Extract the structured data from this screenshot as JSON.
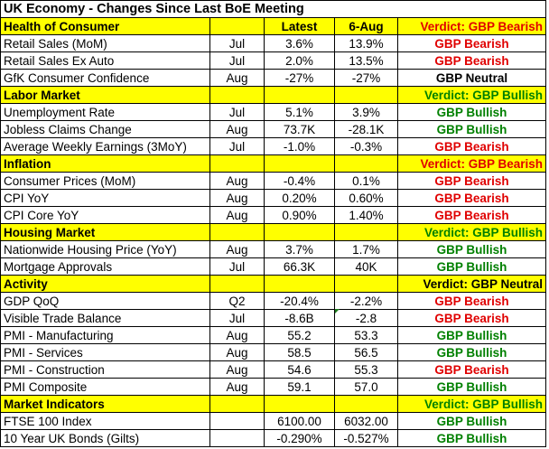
{
  "title": "UK Economy - Changes Since Last BoE Meeting",
  "sections": [
    {
      "name": "Health of Consumer",
      "col_latest": "Latest",
      "col_prior": "6-Aug",
      "verdict": "Verdict: GBP Bearish",
      "verdict_tone": "bear",
      "rows": [
        {
          "indicator": "Retail Sales (MoM)",
          "period": "Jul",
          "latest": "3.6%",
          "prior": "13.9%",
          "verdict": "GBP Bearish",
          "tone": "bear"
        },
        {
          "indicator": "Retail Sales Ex Auto",
          "period": "Jul",
          "latest": "2.0%",
          "prior": "13.5%",
          "verdict": "GBP Bearish",
          "tone": "bear"
        },
        {
          "indicator": "GfK Consumer Confidence",
          "period": "Aug",
          "latest": "-27%",
          "prior": "-27%",
          "verdict": "GBP Neutral",
          "tone": "neutral"
        }
      ]
    },
    {
      "name": "Labor Market",
      "verdict": "Verdict: GBP Bullish",
      "verdict_tone": "bull",
      "rows": [
        {
          "indicator": "Unemployment Rate",
          "period": "Jul",
          "latest": "5.1%",
          "prior": "3.9%",
          "verdict": "GBP Bullish",
          "tone": "bull"
        },
        {
          "indicator": "Jobless Claims Change",
          "period": "Aug",
          "latest": "73.7K",
          "prior": "-28.1K",
          "verdict": "GBP Bullish",
          "tone": "bull"
        },
        {
          "indicator": "Average Weekly Earnings (3MoY)",
          "period": "Jul",
          "latest": "-1.0%",
          "prior": "-0.3%",
          "verdict": "GBP Bearish",
          "tone": "bear"
        }
      ]
    },
    {
      "name": "Inflation",
      "verdict": "Verdict: GBP Bearish",
      "verdict_tone": "bear",
      "rows": [
        {
          "indicator": "Consumer Prices (MoM)",
          "period": "Aug",
          "latest": "-0.4%",
          "prior": "0.1%",
          "verdict": "GBP Bearish",
          "tone": "bear"
        },
        {
          "indicator": "CPI YoY",
          "period": "Aug",
          "latest": "0.20%",
          "prior": "0.60%",
          "verdict": "GBP Bearish",
          "tone": "bear"
        },
        {
          "indicator": "CPI Core YoY",
          "period": "Aug",
          "latest": "0.90%",
          "prior": "1.40%",
          "verdict": "GBP Bearish",
          "tone": "bear"
        }
      ]
    },
    {
      "name": "Housing Market",
      "verdict": "Verdict: GBP Bullish",
      "verdict_tone": "bull",
      "rows": [
        {
          "indicator": "Nationwide Housing Price (YoY)",
          "period": "Aug",
          "latest": "3.7%",
          "prior": "1.7%",
          "verdict": "GBP Bullish",
          "tone": "bull"
        },
        {
          "indicator": "Mortgage Approvals",
          "period": "Jul",
          "latest": "66.3K",
          "prior": "40K",
          "verdict": "GBP Bullish",
          "tone": "bull"
        }
      ]
    },
    {
      "name": "Activity",
      "verdict": "Verdict: GBP Neutral",
      "verdict_tone": "neutral",
      "rows": [
        {
          "indicator": "GDP QoQ",
          "period": "Q2",
          "latest": "-20.4%",
          "prior": "-2.2%",
          "verdict": "GBP Bearish",
          "tone": "bear"
        },
        {
          "indicator": "Visible Trade Balance",
          "period": "Jul",
          "latest": "-8.6B",
          "prior": "-2.8",
          "verdict": "GBP Bearish",
          "tone": "bear"
        },
        {
          "indicator": "PMI - Manufacturing",
          "period": "Aug",
          "latest": "55.2",
          "prior": "53.3",
          "verdict": "GBP Bullish",
          "tone": "bull"
        },
        {
          "indicator": "PMI - Services",
          "period": "Aug",
          "latest": "58.5",
          "prior": "56.5",
          "verdict": "GBP Bullish",
          "tone": "bull"
        },
        {
          "indicator": "PMI - Construction",
          "period": "Aug",
          "latest": "54.6",
          "prior": "55.3",
          "verdict": "GBP Bearish",
          "tone": "bear"
        },
        {
          "indicator": "PMI Composite",
          "period": "Aug",
          "latest": "59.1",
          "prior": "57.0",
          "verdict": "GBP Bullish",
          "tone": "bull"
        }
      ]
    },
    {
      "name": "Market Indicators",
      "verdict": "Verdict: GBP Bullish",
      "verdict_tone": "bull",
      "rows": [
        {
          "indicator": "FTSE 100 Index",
          "period": "",
          "latest": "6100.00",
          "prior": "6032.00",
          "verdict": "GBP Bullish",
          "tone": "bull"
        },
        {
          "indicator": "10 Year UK Bonds (Gilts)",
          "period": "",
          "latest": "-0.290%",
          "prior": "-0.527%",
          "verdict": "GBP Bullish",
          "tone": "bull"
        }
      ]
    }
  ],
  "colors": {
    "bearish": "#e00000",
    "bullish": "#008000",
    "neutral": "#000000",
    "section_fill": "#ffff00"
  }
}
